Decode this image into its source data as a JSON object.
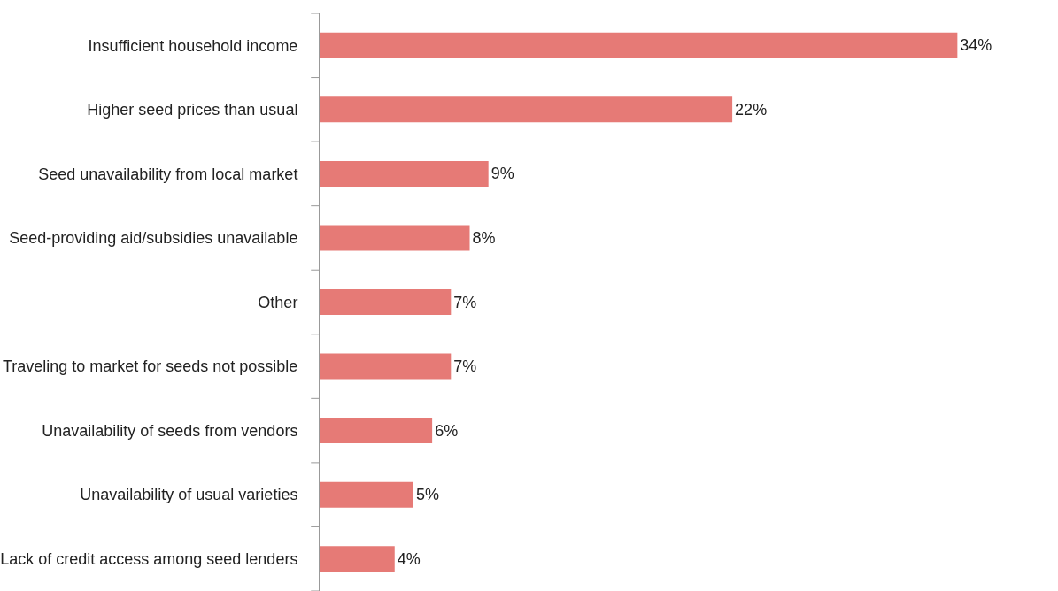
{
  "chart_data": {
    "type": "bar",
    "orientation": "horizontal",
    "categories": [
      "Insufficient household income",
      "Higher seed prices than usual",
      "Seed unavailability from local market",
      "Seed-providing aid/subsidies unavailable",
      "Other",
      "Traveling to market for seeds not possible",
      "Unavailability of seeds from vendors",
      "Unavailability of usual varieties",
      "Lack of credit access among seed lenders"
    ],
    "values": [
      34,
      22,
      9,
      8,
      7,
      7,
      6,
      5,
      4
    ],
    "value_labels": [
      "34%",
      "22%",
      "9%",
      "8%",
      "7%",
      "7%",
      "6%",
      "5%",
      "4%"
    ],
    "color": "#e67a76",
    "legend": false,
    "tick_labels": "y"
  }
}
